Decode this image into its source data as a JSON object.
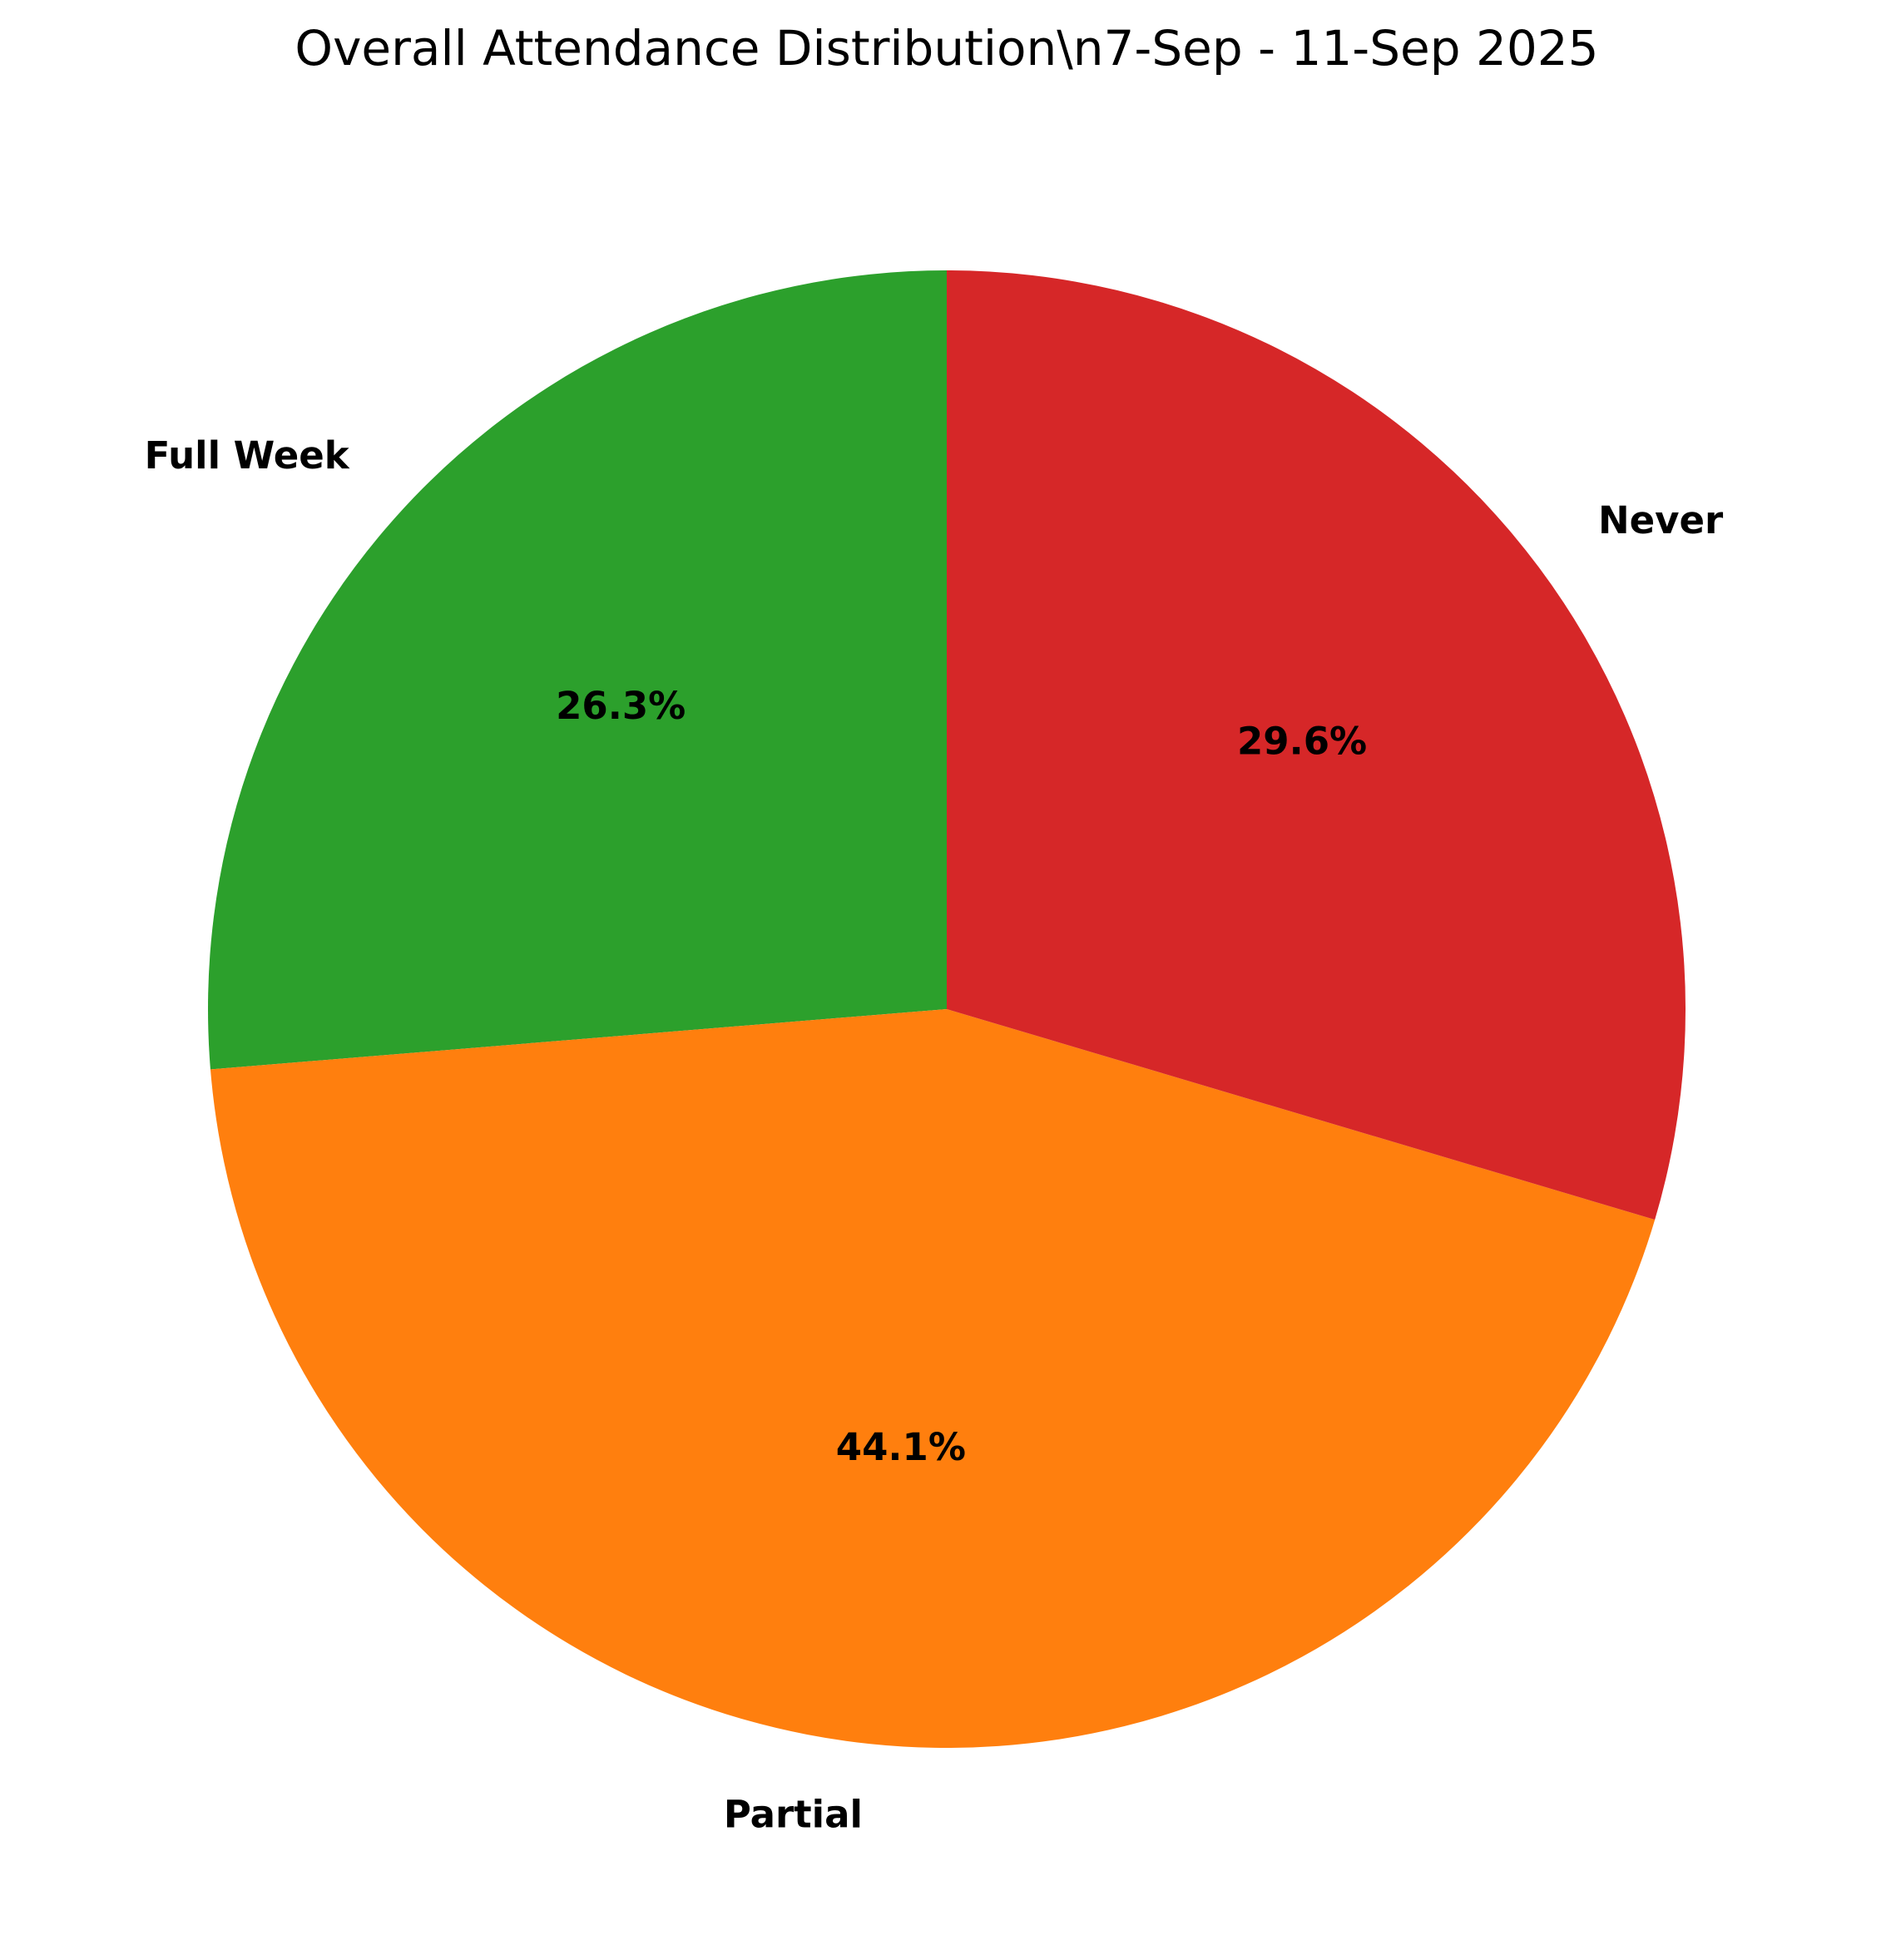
{
  "chart_data": {
    "type": "pie",
    "title": "Overall Attendance Distribution\\n7-Sep - 11-Sep 2025",
    "start_angle_deg": 90,
    "direction": "counterclockwise",
    "slices": [
      {
        "label": "Full Week",
        "value": 26.3,
        "pct_label": "26.3%",
        "color": "#2ca02c"
      },
      {
        "label": "Partial",
        "value": 44.1,
        "pct_label": "44.1%",
        "color": "#ff7f0e"
      },
      {
        "label": "Never",
        "value": 29.6,
        "pct_label": "29.6%",
        "color": "#d62728"
      }
    ]
  }
}
